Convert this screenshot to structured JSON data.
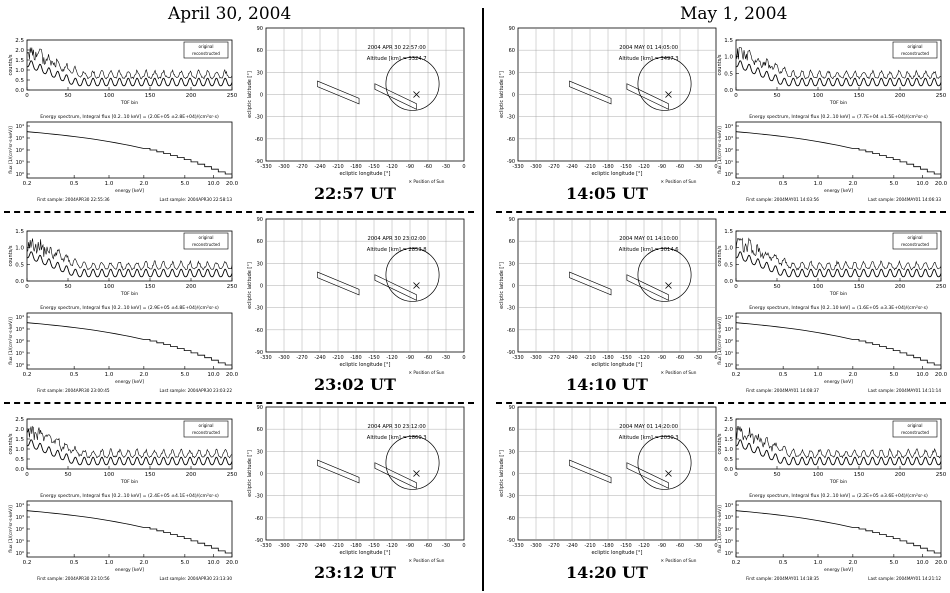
{
  "headers": {
    "left_date": "April 30, 2004",
    "right_date": "May 1, 2004"
  },
  "tof_labels": {
    "ylabel": "counts/s",
    "xlabel": "TOF bin",
    "legend_original": "original",
    "legend_reconstructed": "reconstructed",
    "xticks": [
      "0",
      "50",
      "100",
      "150",
      "200",
      "250"
    ]
  },
  "energy_labels": {
    "ylabel": "flux [1/(cm²sr·s·keV)]",
    "xlabel": "energy [keV]",
    "xticks": [
      "0.2",
      "0.5",
      "1.0",
      "2.0",
      "5.0",
      "10.0",
      "20.0"
    ],
    "yticks": [
      "10⁴",
      "10³",
      "10²",
      "10¹",
      "10⁰"
    ]
  },
  "orbit_labels": {
    "ylabel": "ecliptic latitude [°]",
    "xlabel": "ecliptic longitude [°]",
    "xticks": [
      "-330",
      "-300",
      "-270",
      "-240",
      "-210",
      "-180",
      "-150",
      "-120",
      "-90",
      "-60",
      "-30",
      "0"
    ],
    "yticks": [
      "90",
      "60",
      "30",
      "0",
      "-30",
      "-60",
      "-90"
    ],
    "legend_sun": "✕ Position of Sun",
    "legend_mars": "○ Mars limb",
    "altitude_label": "Altitude [km] ="
  },
  "panels": [
    {
      "ut": "22:57 UT",
      "timestamp": "2004 APR 30 22:57:00",
      "altitude": "3324.7",
      "integral": "Energy spectrum,  Integral flux [0.2..10 keV] = (2.0E+05 ±2.8E+04)/(cm²sr·s)",
      "first": "First sample: 2004APR30 22:55:36",
      "last": "Last sample: 2004APR30 22:58:13"
    },
    {
      "ut": "23:02 UT",
      "timestamp": "2004 APR 30 23:02:00",
      "altitude": "2853.8",
      "integral": "Energy spectrum,  Integral flux [0.2..10 keV] = (2.9E+05 ±4.8E+04)/(cm²sr·s)",
      "first": "First sample: 2004APR30 23:00:45",
      "last": "Last sample: 2004APR30 23:03:22"
    },
    {
      "ut": "23:12 UT",
      "timestamp": "2004 APR 30 23:12:00",
      "altitude": "1860.3",
      "integral": "Energy spectrum,  Integral flux [0.2..10 keV] = (2.4E+05 ±4.1E+04)/(cm²sr·s)",
      "first": "First sample: 2004APR30 23:10:56",
      "last": "Last sample: 2004APR30 23:13:30"
    },
    {
      "ut": "14:05 UT",
      "timestamp": "2004 MAY 01 14:05:00",
      "altitude": "3497.3",
      "integral": "Energy spectrum,  Integral flux [0.2..10 keV] = (7.7E+04 ±1.5E+04)/(cm²sr·s)",
      "first": "First sample: 2004MAY01 14:03:56",
      "last": "Last sample: 2004MAY01 14:06:33"
    },
    {
      "ut": "14:10 UT",
      "timestamp": "2004 MAY 01 14:10:00",
      "altitude": "3014.6",
      "integral": "Energy spectrum,  Integral flux [0.2..10 keV] = (1.6E+05 ±3.3E+04)/(cm²sr·s)",
      "first": "First sample: 2004MAY01 14:08:37",
      "last": "Last sample: 2004MAY01 14:11:14"
    },
    {
      "ut": "14:20 UT",
      "timestamp": "2004 MAY 01 14:20:00",
      "altitude": "2030.3",
      "integral": "Energy spectrum,  Integral flux [0.2..10 keV] = (2.2E+05 ±3.6E+04)/(cm²sr·s)",
      "first": "First sample: 2004MAY01 14:18:35",
      "last": "Last sample: 2004MAY01 14:21:12"
    }
  ],
  "tof_yticks": [
    [
      "2.5",
      "2.0",
      "1.5",
      "1.0",
      "0.5",
      "0.0"
    ],
    [
      "1.5",
      "1.0",
      "0.5",
      "0.0"
    ],
    [
      "2.5",
      "2.0",
      "1.5",
      "1.0",
      "0.5",
      "0.0"
    ],
    [
      "1.5",
      "1.0",
      "0.5",
      "0.0"
    ],
    [
      "1.5",
      "1.0",
      "0.5",
      "0.0"
    ],
    [
      "2.5",
      "2.0",
      "1.5",
      "1.0",
      "0.5",
      "0.0"
    ]
  ],
  "colors": {
    "ink": "#000000",
    "grid": "#888888",
    "divider": "#000000"
  }
}
